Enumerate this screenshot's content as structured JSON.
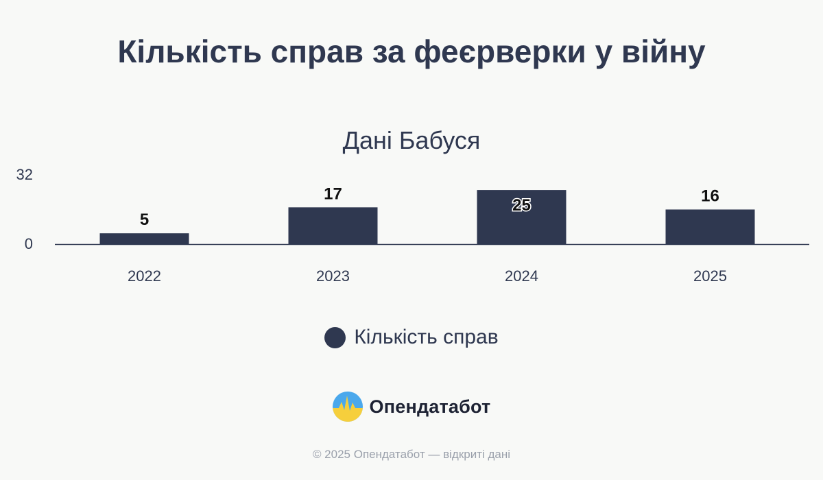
{
  "title": "Кількість справ за феєрверки у війну",
  "subtitle": "Дані Бабуся",
  "legend": {
    "label": "Кількість справ",
    "color": "#2f3850"
  },
  "brand": {
    "name": "Опендатабот",
    "logo_icon": "opendatabot-logo-icon"
  },
  "footer": "© 2025 Опендатабот — відкриті дані",
  "chart_data": {
    "type": "bar",
    "categories": [
      "2022",
      "2023",
      "2024",
      "2025"
    ],
    "series": [
      {
        "name": "Кількість справ",
        "values": [
          5,
          17,
          25,
          16
        ],
        "color": "#2f3850"
      }
    ],
    "ylim": [
      0,
      32
    ],
    "yticks": [
      "0",
      "32"
    ],
    "grid": false,
    "legend_position": "bottom"
  }
}
